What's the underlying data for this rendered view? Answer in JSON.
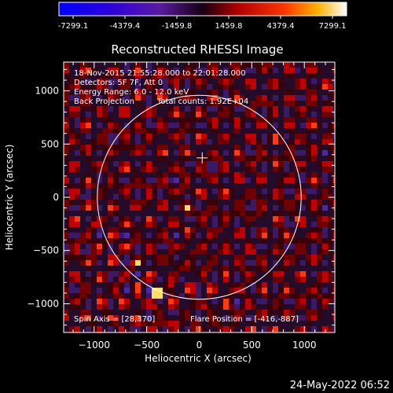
{
  "chart_data": {
    "type": "heatmap",
    "title": "Reconstructed RHESSI Image",
    "xlabel": "Heliocentric X (arcsec)",
    "ylabel": "Heliocentric Y (arcsec)",
    "xlim": [
      -1290,
      1290
    ],
    "ylim": [
      -1270,
      1270
    ],
    "x_ticks": [
      -1000,
      -500,
      0,
      500,
      1000
    ],
    "y_ticks": [
      -1000,
      -500,
      0,
      500,
      1000
    ],
    "colorbar": {
      "tick_labels": [
        "-7299.1",
        "-4379.4",
        "-1459.8",
        "1459.8",
        "4379.4",
        "7299.1"
      ],
      "range": [
        -7299.1,
        7299.1
      ]
    },
    "annotations": {
      "time_range": "18-Nov-2015 21:55:28.000 to 22:01:28.000",
      "detectors": "Detectors: 5F 7F, Att 0",
      "energy": "Energy Range: 6.0 - 12.0 keV",
      "method": "Back Projection",
      "counts": "Total counts: 1.92E+04",
      "spin_axis": "Spin Axis = [28,370]",
      "flare_position": "Flare Position = [-416,-887]"
    },
    "solar_limb": {
      "center": [
        0,
        0
      ],
      "radius_arcsec": 970
    },
    "spin_axis": [
      28,
      370
    ],
    "flare_position": [
      -416,
      -887
    ],
    "grid": false
  },
  "footer": {
    "date": "24-May-2022 06:52"
  }
}
